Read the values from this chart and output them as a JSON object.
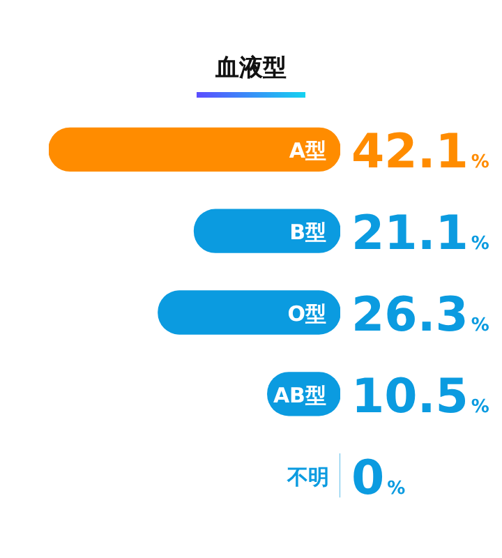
{
  "chart_data": {
    "type": "bar",
    "orientation": "horizontal",
    "title": "血液型",
    "categories": [
      "A型",
      "B型",
      "O型",
      "AB型",
      "不明"
    ],
    "values": [
      42.1,
      21.1,
      26.3,
      10.5,
      0
    ],
    "colors": [
      "#ff8c00",
      "#0b9be0",
      "#0b9be0",
      "#0b9be0",
      "#0b9be0"
    ],
    "value_labels": [
      "42.1%",
      "21.1%",
      "26.3%",
      "10.5%",
      "0%"
    ],
    "legend": false
  }
}
